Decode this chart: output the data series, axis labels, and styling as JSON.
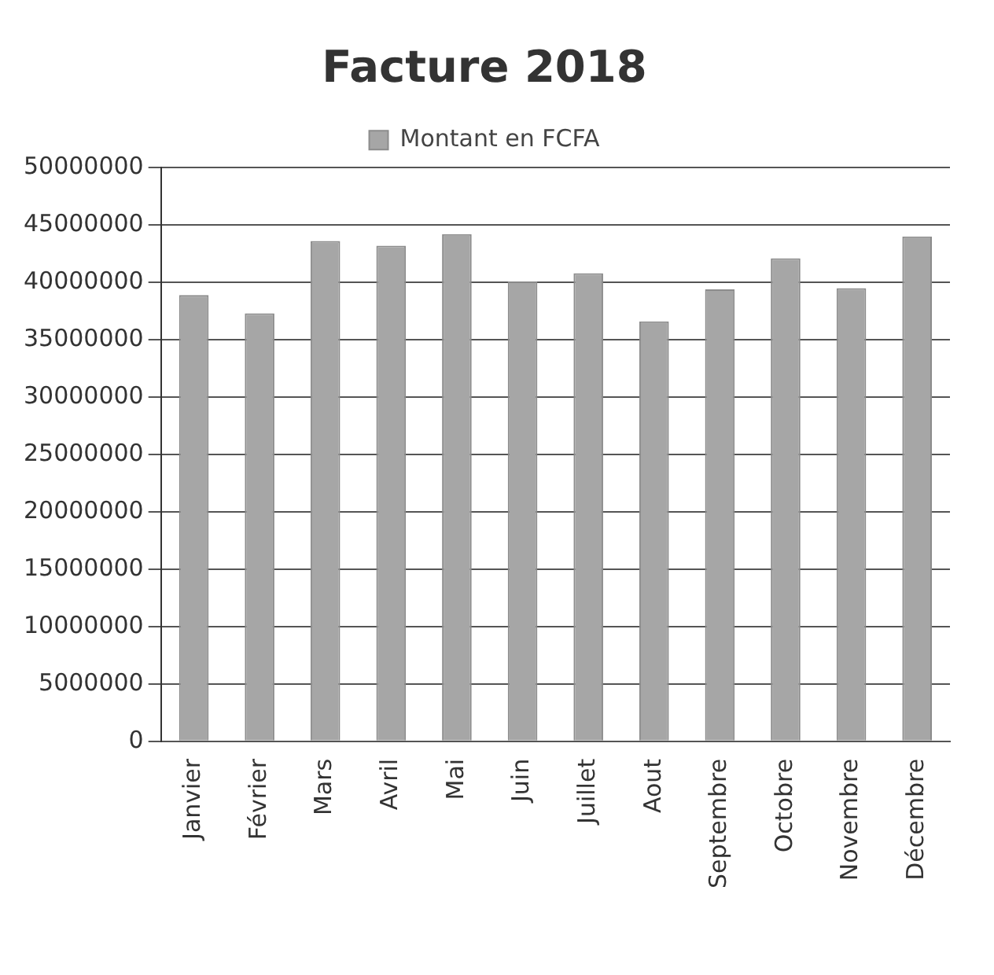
{
  "chart_data": {
    "type": "bar",
    "title": "Facture 2018",
    "categories": [
      "Janvier",
      "Février",
      "Mars",
      "Avril",
      "Mai",
      "Juin",
      "Juillet",
      "Aout",
      "Septembre",
      "Octobre",
      "Novembre",
      "Décembre"
    ],
    "series": [
      {
        "name": "Montant en FCFA",
        "color": "#a6a6a6",
        "values": [
          38900000,
          37300000,
          43600000,
          43200000,
          44200000,
          40100000,
          40800000,
          36600000,
          39400000,
          42100000,
          39500000,
          44000000
        ]
      }
    ],
    "ylim": [
      0,
      50000000
    ],
    "yticks": [
      0,
      5000000,
      10000000,
      15000000,
      20000000,
      25000000,
      30000000,
      35000000,
      40000000,
      45000000,
      50000000
    ],
    "grid": "y",
    "legend": "top"
  }
}
